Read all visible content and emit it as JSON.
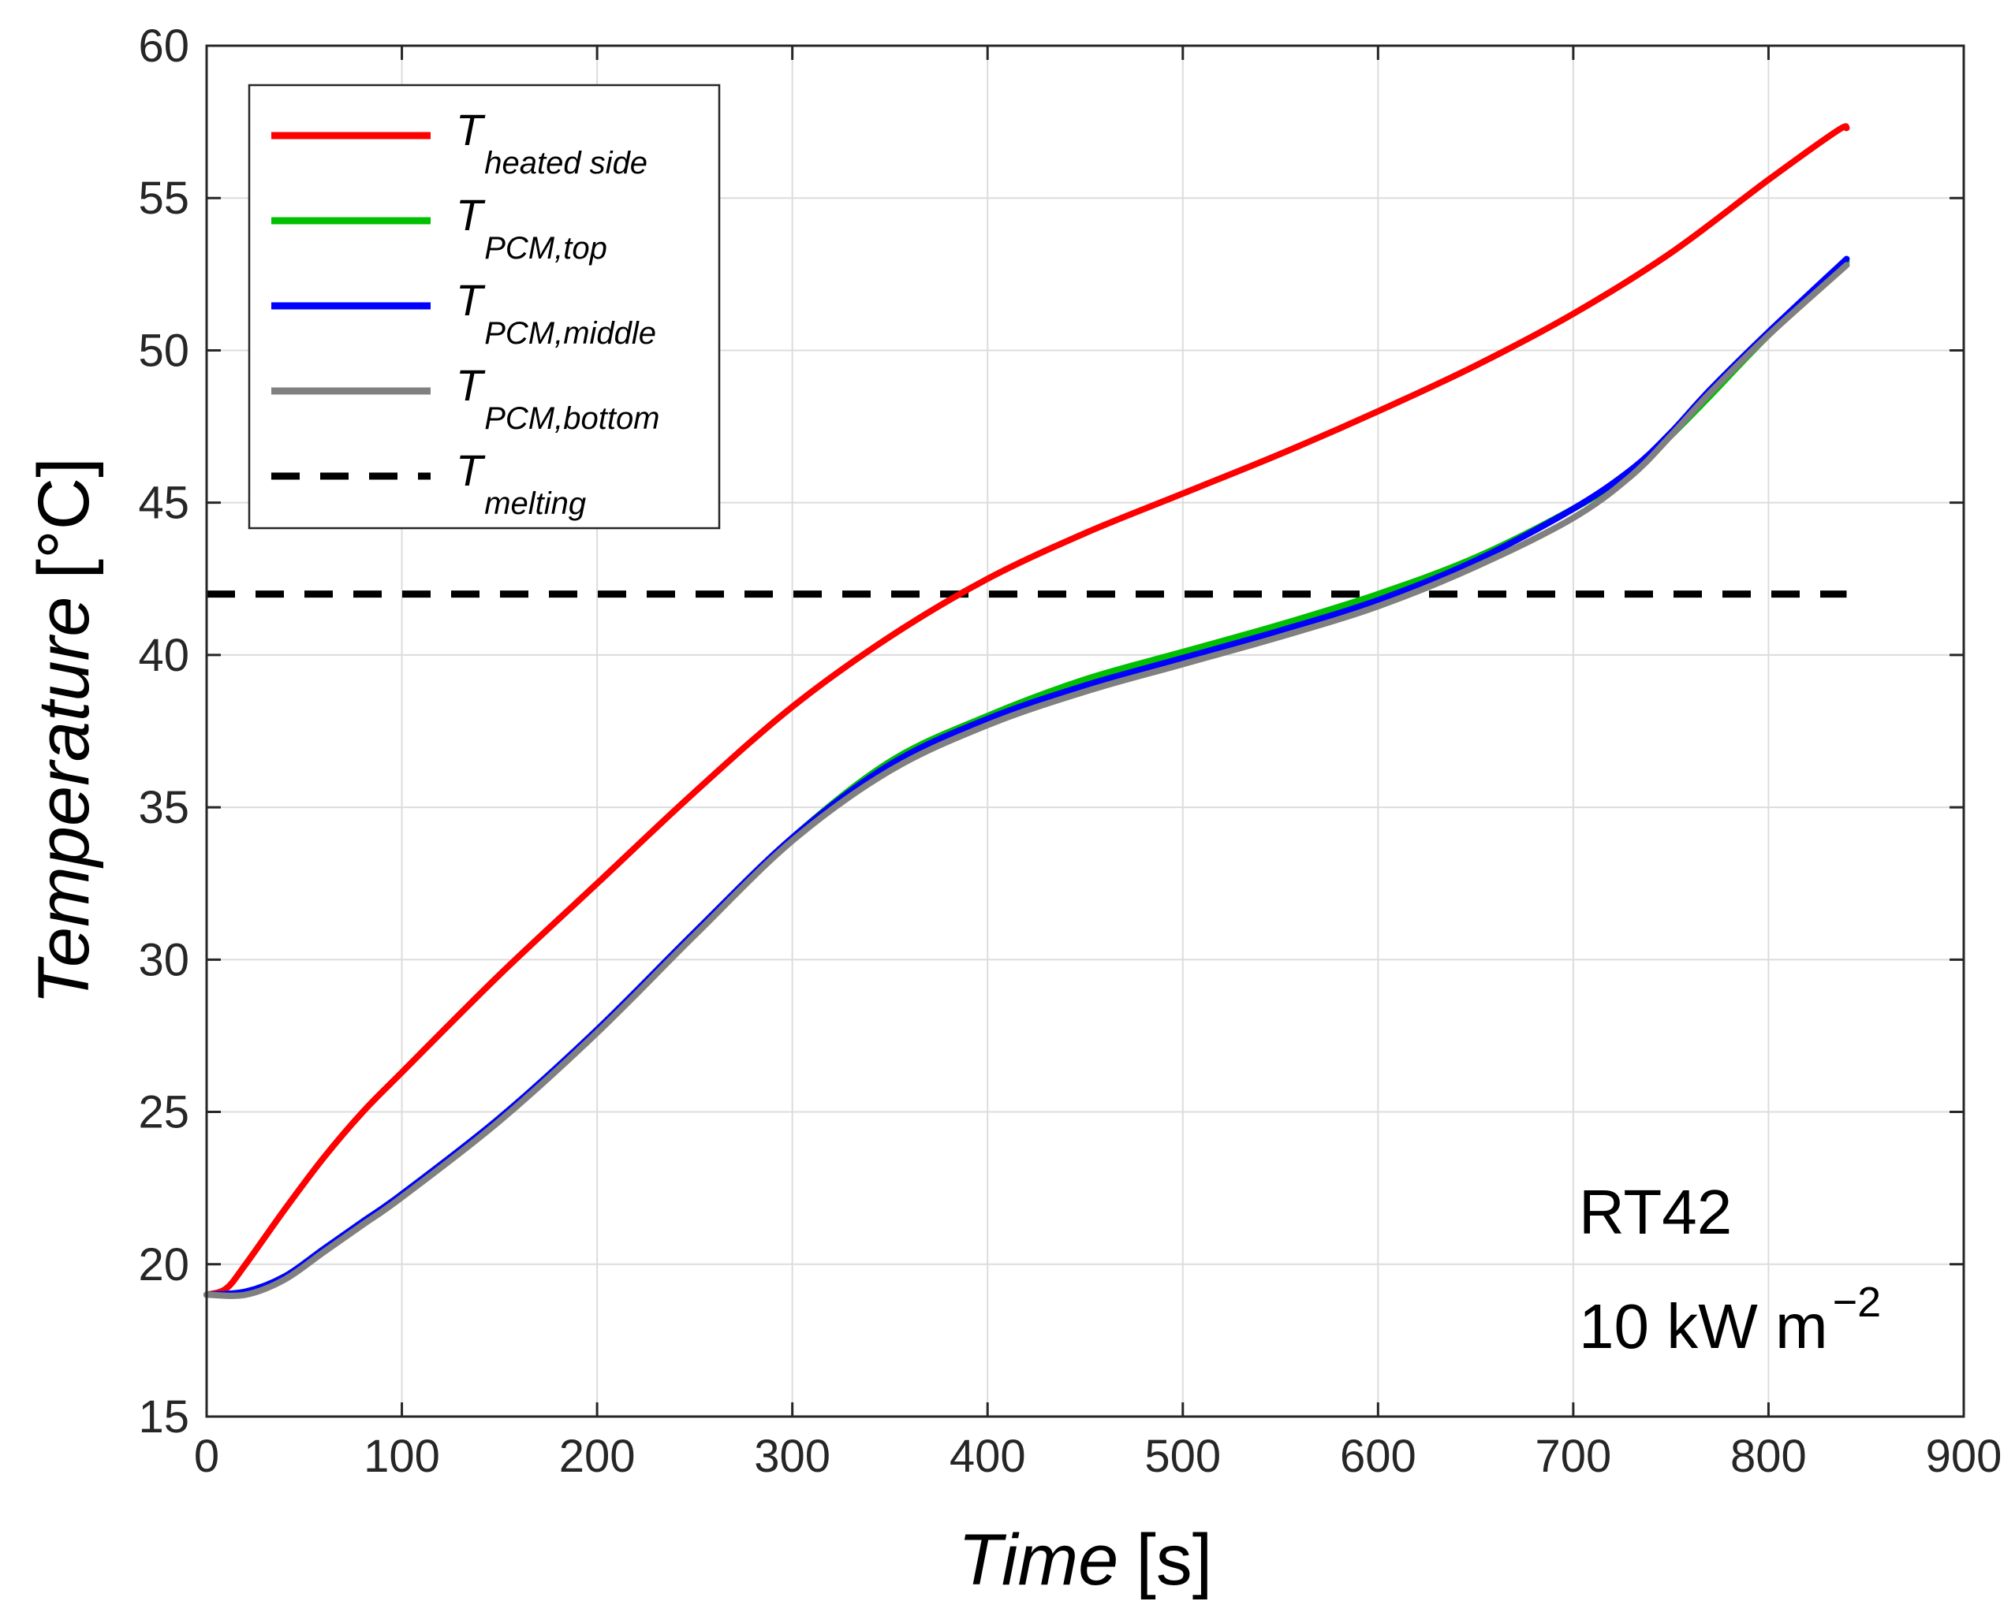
{
  "chart_data": {
    "type": "line",
    "xlabel": {
      "main": "Time",
      "unit": "[s]"
    },
    "ylabel": {
      "main": "Temperature",
      "unit": "[°C]"
    },
    "xlim": [
      0,
      900
    ],
    "ylim": [
      15,
      60
    ],
    "xticks": [
      0,
      100,
      200,
      300,
      400,
      500,
      600,
      700,
      800,
      900
    ],
    "yticks": [
      15,
      20,
      25,
      30,
      35,
      40,
      45,
      50,
      55,
      60
    ],
    "grid": true,
    "legend_position": "top-left",
    "series": [
      {
        "name": "heated side",
        "legend_main": "T",
        "legend_sub": "heated side",
        "color": "#ff0000",
        "style": "solid",
        "x": [
          0,
          10,
          20,
          40,
          60,
          80,
          100,
          150,
          200,
          250,
          300,
          350,
          400,
          450,
          500,
          550,
          600,
          650,
          700,
          750,
          800,
          835,
          840
        ],
        "y": [
          19,
          19.2,
          20,
          21.8,
          23.5,
          25,
          26.3,
          29.5,
          32.5,
          35.5,
          38.3,
          40.6,
          42.5,
          44,
          45.3,
          46.6,
          48,
          49.5,
          51.2,
          53.2,
          55.6,
          57.2,
          57.3
        ]
      },
      {
        "name": "PCM,top",
        "legend_main": "T",
        "legend_sub": "PCM,top",
        "color": "#00c000",
        "style": "solid",
        "x": [
          0,
          20,
          40,
          60,
          80,
          100,
          150,
          200,
          250,
          300,
          350,
          400,
          450,
          500,
          550,
          600,
          650,
          700,
          730,
          750,
          770,
          800,
          840
        ],
        "y": [
          19,
          19.1,
          19.6,
          20.5,
          21.4,
          22.3,
          24.8,
          27.7,
          30.9,
          34,
          36.5,
          38,
          39.2,
          40.1,
          41,
          42,
          43.2,
          44.8,
          46,
          47.2,
          48.5,
          50.5,
          52.9
        ]
      },
      {
        "name": "PCM,middle",
        "legend_main": "T",
        "legend_sub": "PCM,middle",
        "color": "#0000ff",
        "style": "solid",
        "x": [
          0,
          20,
          40,
          60,
          80,
          100,
          150,
          200,
          250,
          300,
          350,
          400,
          450,
          500,
          550,
          600,
          650,
          700,
          730,
          750,
          770,
          800,
          840
        ],
        "y": [
          19,
          19.1,
          19.6,
          20.5,
          21.4,
          22.3,
          24.8,
          27.7,
          30.9,
          34,
          36.4,
          37.9,
          39,
          39.9,
          40.8,
          41.8,
          43.1,
          44.8,
          46.1,
          47.3,
          48.7,
          50.6,
          53
        ]
      },
      {
        "name": "PCM,bottom",
        "legend_main": "T",
        "legend_sub": "PCM,bottom",
        "color": "#808080",
        "style": "solid",
        "x": [
          0,
          20,
          40,
          60,
          80,
          100,
          150,
          200,
          250,
          300,
          350,
          400,
          450,
          500,
          550,
          600,
          650,
          700,
          730,
          750,
          770,
          800,
          840
        ],
        "y": [
          19,
          19,
          19.5,
          20.4,
          21.3,
          22.2,
          24.7,
          27.6,
          30.8,
          33.9,
          36.2,
          37.7,
          38.8,
          39.7,
          40.6,
          41.6,
          42.9,
          44.5,
          45.9,
          47.2,
          48.6,
          50.5,
          52.8
        ]
      },
      {
        "name": "melting",
        "legend_main": "T",
        "legend_sub": "melting",
        "color": "#000000",
        "style": "dashed",
        "x": [
          0,
          840
        ],
        "y": [
          42,
          42
        ]
      }
    ],
    "annotations": [
      {
        "text": "RT42"
      },
      {
        "text": "10 kW m",
        "superscript": "−2"
      }
    ]
  }
}
